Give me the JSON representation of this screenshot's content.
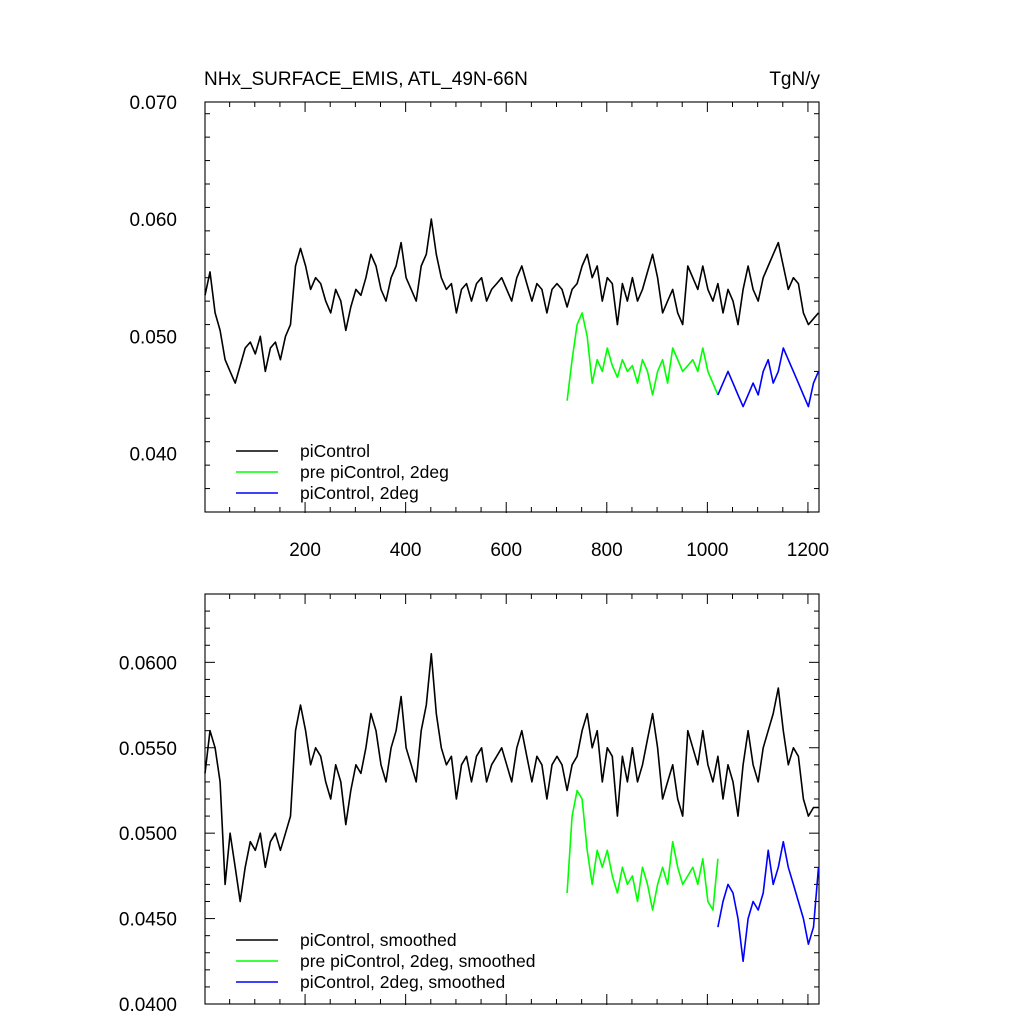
{
  "chart_data": [
    {
      "type": "line",
      "title": "NHx_SURFACE_EMIS, ATL_49N-66N",
      "units": "TgN/y",
      "xlim": [
        1,
        1222
      ],
      "ylim": [
        0.035,
        0.07
      ],
      "xticks": [
        200,
        400,
        600,
        800,
        1000,
        1200
      ],
      "yticks": [
        "0.040",
        "0.050",
        "0.060",
        "0.070"
      ],
      "legend_position": "bottom-left",
      "series": [
        {
          "name": "piControl",
          "color": "#000000",
          "x_start": 1,
          "x_step": 10,
          "values": [
            0.0535,
            0.0555,
            0.052,
            0.0505,
            0.048,
            0.047,
            0.046,
            0.0475,
            0.049,
            0.0495,
            0.0485,
            0.05,
            0.047,
            0.049,
            0.0495,
            0.048,
            0.05,
            0.051,
            0.056,
            0.0575,
            0.056,
            0.054,
            0.055,
            0.0545,
            0.053,
            0.052,
            0.054,
            0.053,
            0.0505,
            0.0525,
            0.054,
            0.0535,
            0.055,
            0.057,
            0.056,
            0.054,
            0.053,
            0.055,
            0.056,
            0.058,
            0.055,
            0.054,
            0.053,
            0.056,
            0.057,
            0.06,
            0.057,
            0.055,
            0.054,
            0.0545,
            0.052,
            0.054,
            0.0545,
            0.053,
            0.0545,
            0.055,
            0.053,
            0.054,
            0.0545,
            0.055,
            0.054,
            0.053,
            0.055,
            0.056,
            0.0545,
            0.053,
            0.0545,
            0.054,
            0.052,
            0.054,
            0.0545,
            0.054,
            0.0525,
            0.054,
            0.0545,
            0.056,
            0.057,
            0.055,
            0.056,
            0.053,
            0.055,
            0.0545,
            0.051,
            0.0545,
            0.053,
            0.055,
            0.053,
            0.054,
            0.0555,
            0.057,
            0.055,
            0.052,
            0.053,
            0.054,
            0.052,
            0.051,
            0.056,
            0.055,
            0.054,
            0.056,
            0.054,
            0.053,
            0.0545,
            0.052,
            0.054,
            0.053,
            0.051,
            0.054,
            0.056,
            0.054,
            0.053,
            0.055,
            0.056,
            0.057,
            0.058,
            0.056,
            0.054,
            0.055,
            0.0545,
            0.052,
            0.051,
            0.0515,
            0.052
          ]
        },
        {
          "name": "pre piControl, 2deg",
          "color": "#00ff00",
          "x_start": 721,
          "x_step": 10,
          "values": [
            0.0445,
            0.048,
            0.051,
            0.052,
            0.05,
            0.046,
            0.048,
            0.047,
            0.049,
            0.0475,
            0.0465,
            0.048,
            0.047,
            0.0475,
            0.046,
            0.048,
            0.047,
            0.045,
            0.047,
            0.048,
            0.046,
            0.049,
            0.048,
            0.047,
            0.0475,
            0.048,
            0.047,
            0.049,
            0.047,
            0.046,
            0.045
          ]
        },
        {
          "name": "piControl, 2deg",
          "color": "#0000ff",
          "x_start": 1021,
          "x_step": 10,
          "values": [
            0.045,
            0.046,
            0.047,
            0.046,
            0.045,
            0.044,
            0.045,
            0.046,
            0.045,
            0.047,
            0.048,
            0.046,
            0.047,
            0.049,
            0.048,
            0.047,
            0.046,
            0.045,
            0.044,
            0.046,
            0.047
          ]
        }
      ]
    },
    {
      "type": "line",
      "xlim": [
        1,
        1222
      ],
      "ylim": [
        0.04,
        0.064
      ],
      "xticks": [
        200,
        400,
        600,
        800,
        1000,
        1200
      ],
      "yticks": [
        "0.0400",
        "0.0450",
        "0.0500",
        "0.0550",
        "0.0600"
      ],
      "legend_position": "bottom-left",
      "series": [
        {
          "name": "piControl, smoothed",
          "color": "#000000",
          "x_start": 1,
          "x_step": 10,
          "values": [
            0.0535,
            0.056,
            0.055,
            0.053,
            0.047,
            0.05,
            0.048,
            0.046,
            0.048,
            0.0495,
            0.049,
            0.05,
            0.048,
            0.0495,
            0.05,
            0.049,
            0.05,
            0.051,
            0.056,
            0.0575,
            0.056,
            0.054,
            0.055,
            0.0545,
            0.053,
            0.052,
            0.054,
            0.053,
            0.0505,
            0.0525,
            0.054,
            0.0535,
            0.055,
            0.057,
            0.056,
            0.054,
            0.053,
            0.055,
            0.056,
            0.058,
            0.055,
            0.054,
            0.053,
            0.056,
            0.0575,
            0.0605,
            0.057,
            0.055,
            0.054,
            0.0545,
            0.052,
            0.054,
            0.0545,
            0.053,
            0.0545,
            0.055,
            0.053,
            0.054,
            0.0545,
            0.055,
            0.054,
            0.053,
            0.055,
            0.056,
            0.0545,
            0.053,
            0.0545,
            0.054,
            0.052,
            0.054,
            0.0545,
            0.054,
            0.0525,
            0.054,
            0.0545,
            0.056,
            0.057,
            0.055,
            0.056,
            0.053,
            0.055,
            0.0545,
            0.051,
            0.0545,
            0.053,
            0.055,
            0.053,
            0.054,
            0.0555,
            0.057,
            0.055,
            0.052,
            0.053,
            0.054,
            0.052,
            0.051,
            0.056,
            0.055,
            0.054,
            0.056,
            0.054,
            0.053,
            0.0545,
            0.052,
            0.054,
            0.053,
            0.051,
            0.054,
            0.056,
            0.054,
            0.053,
            0.055,
            0.056,
            0.057,
            0.0585,
            0.056,
            0.054,
            0.055,
            0.0545,
            0.052,
            0.051,
            0.0515,
            0.0515
          ]
        },
        {
          "name": "pre piControl, 2deg, smoothed",
          "color": "#00ff00",
          "x_start": 721,
          "x_step": 10,
          "values": [
            0.0465,
            0.051,
            0.0525,
            0.052,
            0.049,
            0.047,
            0.049,
            0.048,
            0.049,
            0.0475,
            0.0465,
            0.048,
            0.047,
            0.0475,
            0.046,
            0.048,
            0.047,
            0.0455,
            0.047,
            0.048,
            0.047,
            0.0495,
            0.048,
            0.047,
            0.0475,
            0.048,
            0.047,
            0.0485,
            0.046,
            0.0455,
            0.0485
          ]
        },
        {
          "name": "piControl, 2deg, smoothed",
          "color": "#0000ff",
          "x_start": 1021,
          "x_step": 10,
          "values": [
            0.0445,
            0.046,
            0.047,
            0.0465,
            0.045,
            0.0425,
            0.045,
            0.046,
            0.0455,
            0.0465,
            0.049,
            0.047,
            0.048,
            0.0495,
            0.048,
            0.047,
            0.046,
            0.045,
            0.0435,
            0.0445,
            0.048
          ]
        }
      ]
    }
  ]
}
